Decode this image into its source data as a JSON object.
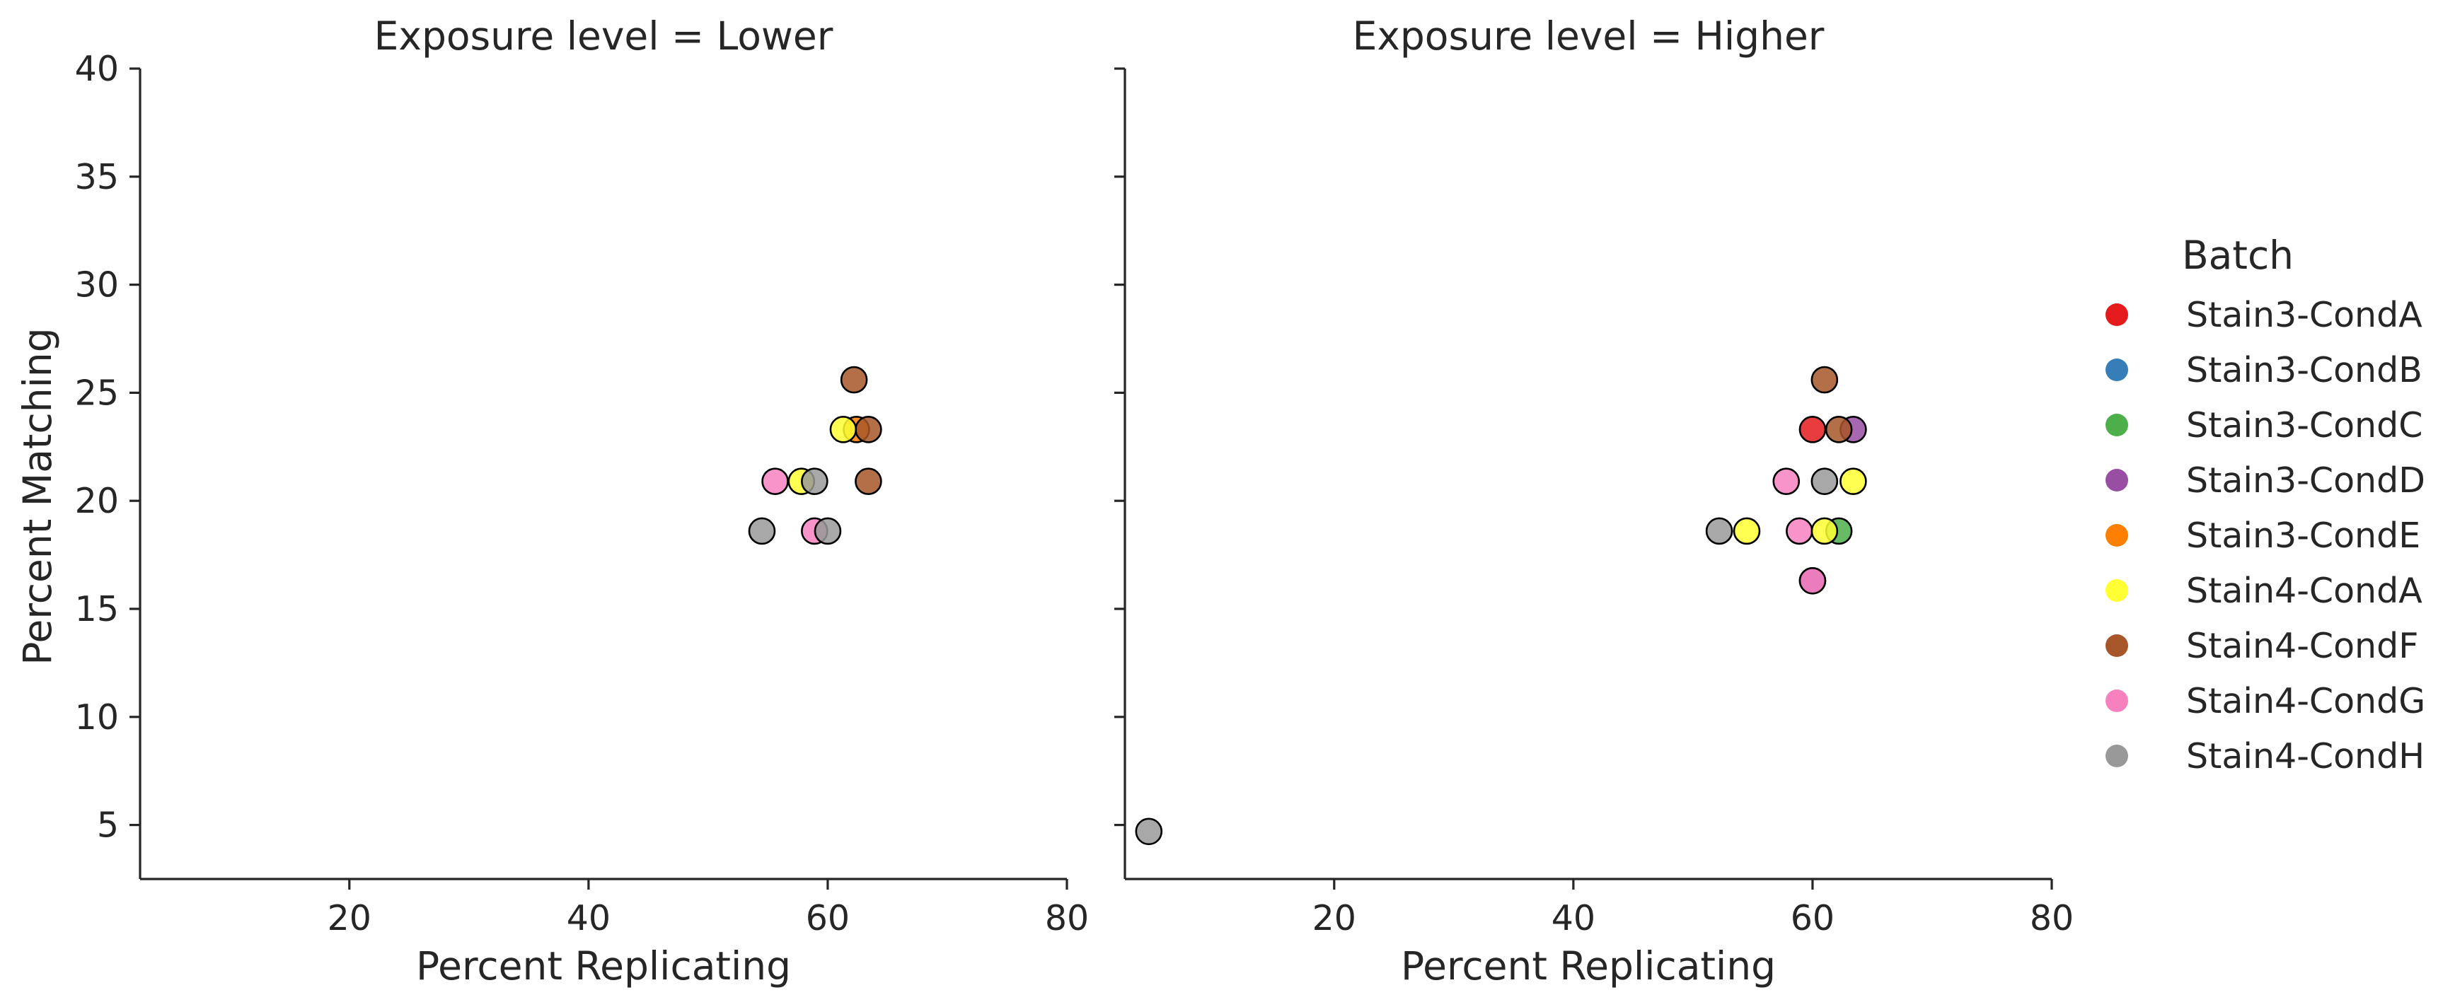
{
  "chart_data": {
    "type": "scatter",
    "xlabel": "Percent Replicating",
    "ylabel": "Percent Matching",
    "xlim": [
      2.5,
      80
    ],
    "ylim": [
      2.5,
      40
    ],
    "xticks": [
      20,
      40,
      60,
      80
    ],
    "yticks": [
      5,
      10,
      15,
      20,
      25,
      30,
      35,
      40
    ],
    "grid": false,
    "legend": {
      "title": "Batch",
      "placement": "right",
      "entries": [
        {
          "name": "Stain3-CondA",
          "color": "#e41a1c"
        },
        {
          "name": "Stain3-CondB",
          "color": "#377eb8"
        },
        {
          "name": "Stain3-CondC",
          "color": "#4daf4a"
        },
        {
          "name": "Stain3-CondD",
          "color": "#984ea3"
        },
        {
          "name": "Stain3-CondE",
          "color": "#ff7f00"
        },
        {
          "name": "Stain4-CondA",
          "color": "#ffff33"
        },
        {
          "name": "Stain4-CondF",
          "color": "#a65628"
        },
        {
          "name": "Stain4-CondG",
          "color": "#f781bf"
        },
        {
          "name": "Stain4-CondH",
          "color": "#999999"
        }
      ]
    },
    "panels": [
      {
        "title": "Exposure level = Lower",
        "points": [
          {
            "x": 62.2,
            "y": 25.6,
            "batch": "Stain4-CondF"
          },
          {
            "x": 62.4,
            "y": 23.3,
            "batch": "Stain3-CondE"
          },
          {
            "x": 63.4,
            "y": 23.3,
            "batch": "Stain4-CondF"
          },
          {
            "x": 61.3,
            "y": 23.3,
            "batch": "Stain4-CondA"
          },
          {
            "x": 55.6,
            "y": 20.9,
            "batch": "Stain4-CondG"
          },
          {
            "x": 57.8,
            "y": 20.9,
            "batch": "Stain4-CondA"
          },
          {
            "x": 58.9,
            "y": 20.9,
            "batch": "Stain4-CondH"
          },
          {
            "x": 63.4,
            "y": 20.9,
            "batch": "Stain4-CondF"
          },
          {
            "x": 54.5,
            "y": 18.6,
            "batch": "Stain4-CondH"
          },
          {
            "x": 58.9,
            "y": 18.6,
            "batch": "Stain4-CondG"
          },
          {
            "x": 60.0,
            "y": 18.6,
            "batch": "Stain4-CondH"
          }
        ]
      },
      {
        "title": "Exposure level = Higher",
        "points": [
          {
            "x": 61.0,
            "y": 25.6,
            "batch": "Stain4-CondF"
          },
          {
            "x": 60.0,
            "y": 23.3,
            "batch": "Stain3-CondA"
          },
          {
            "x": 63.4,
            "y": 23.3,
            "batch": "Stain3-CondD"
          },
          {
            "x": 62.2,
            "y": 23.3,
            "batch": "Stain4-CondF"
          },
          {
            "x": 57.8,
            "y": 20.9,
            "batch": "Stain4-CondG"
          },
          {
            "x": 61.0,
            "y": 20.9,
            "batch": "Stain4-CondH"
          },
          {
            "x": 63.4,
            "y": 20.9,
            "batch": "Stain4-CondA"
          },
          {
            "x": 52.2,
            "y": 18.6,
            "batch": "Stain4-CondH"
          },
          {
            "x": 54.5,
            "y": 18.6,
            "batch": "Stain4-CondA"
          },
          {
            "x": 58.9,
            "y": 18.6,
            "batch": "Stain4-CondG"
          },
          {
            "x": 62.2,
            "y": 18.6,
            "batch": "Stain3-CondC"
          },
          {
            "x": 61.0,
            "y": 18.6,
            "batch": "Stain4-CondA"
          },
          {
            "x": 60.0,
            "y": 16.3,
            "batch": "Stain3-CondD"
          },
          {
            "x": 60.0,
            "y": 16.3,
            "batch": "Stain4-CondG"
          },
          {
            "x": 4.5,
            "y": 4.7,
            "batch": "Stain4-CondH"
          }
        ]
      }
    ]
  }
}
